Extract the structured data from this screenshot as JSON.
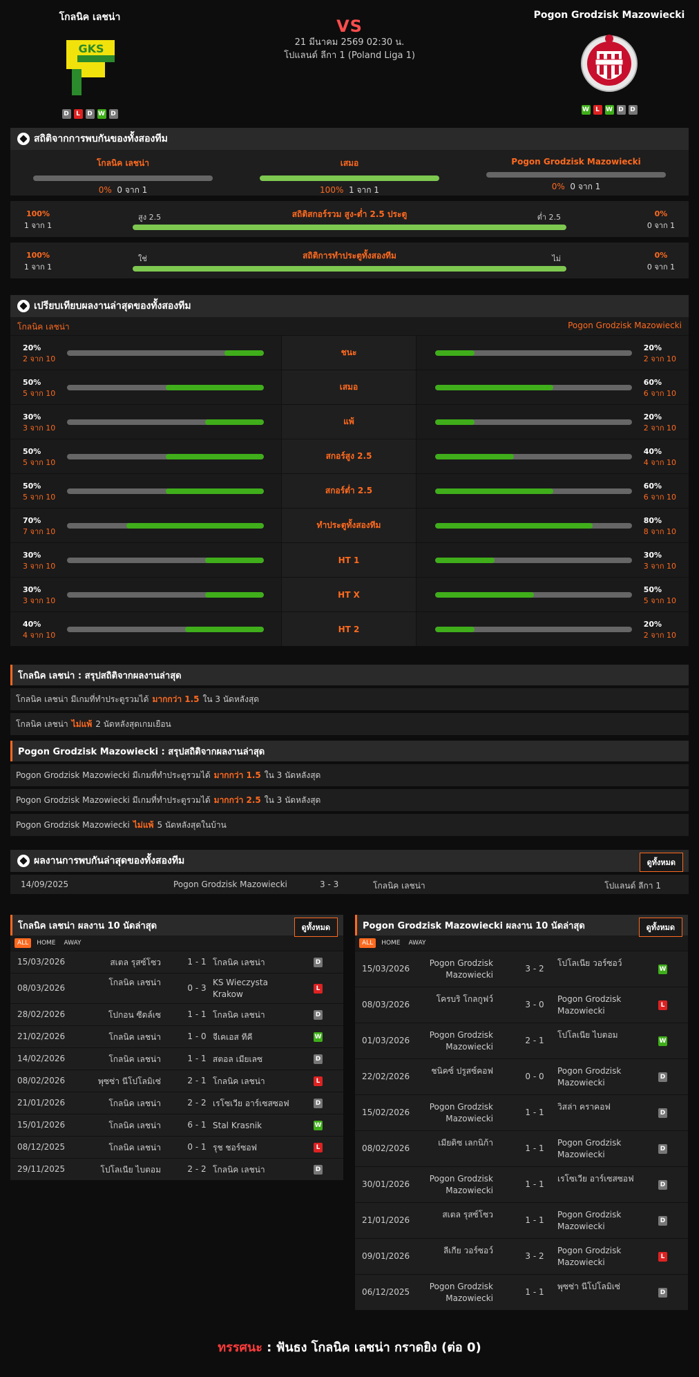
{
  "match": {
    "home": "โกลนิค เลชน่า",
    "away": "Pogon Grodzisk Mazowiecki",
    "vs": "VS",
    "date": "21 มีนาคม 2569 02:30 น.",
    "league": "โปแลนด์ ลีกา 1 (Poland Liga 1)",
    "home_form": [
      "D",
      "L",
      "D",
      "W",
      "D"
    ],
    "away_form": [
      "W",
      "L",
      "W",
      "D",
      "D"
    ]
  },
  "h2h_stats": {
    "title": "สถิติจากการพบกันของทั้งสองทีม",
    "home": {
      "name": "โกลนิค เลชน่า",
      "pct": "0%",
      "sub": "0 จาก 1",
      "value": 0
    },
    "draw": {
      "name": "เสมอ",
      "pct": "100%",
      "sub": "1 จาก 1",
      "value": 100
    },
    "away": {
      "name": "Pogon Grodzisk Mazowiecki",
      "pct": "0%",
      "sub": "0 จาก 1",
      "value": 0
    },
    "ou": {
      "title": "สถิติสกอร์รวม สูง-ต่ำ 2.5 ประตู",
      "left_pct": "100%",
      "left_sub": "1 จาก 1",
      "left_label": "สูง 2.5",
      "right_label": "ต่ำ 2.5",
      "right_pct": "0%",
      "right_sub": "0 จาก 1",
      "value": 100
    },
    "btts": {
      "title": "สถิติการทำประตูทั้งสองทีม",
      "left_pct": "100%",
      "left_sub": "1 จาก 1",
      "left_label": "ใช่",
      "right_label": "ไม่",
      "right_pct": "0%",
      "right_sub": "0 จาก 1",
      "value": 100
    }
  },
  "compare": {
    "title": "เปรียบเทียบผลงานล่าสุดของทั้งสองทีม",
    "home": "โกลนิค เลชน่า",
    "away": "Pogon Grodzisk Mazowiecki",
    "rows": [
      {
        "label": "ชนะ",
        "hp": "20%",
        "hs": "2 จาก 10",
        "hv": 20,
        "ap": "20%",
        "as": "2 จาก 10",
        "av": 20
      },
      {
        "label": "เสมอ",
        "hp": "50%",
        "hs": "5 จาก 10",
        "hv": 50,
        "ap": "60%",
        "as": "6 จาก 10",
        "av": 60
      },
      {
        "label": "แพ้",
        "hp": "30%",
        "hs": "3 จาก 10",
        "hv": 30,
        "ap": "20%",
        "as": "2 จาก 10",
        "av": 20
      },
      {
        "label": "สกอร์สูง 2.5",
        "hp": "50%",
        "hs": "5 จาก 10",
        "hv": 50,
        "ap": "40%",
        "as": "4 จาก 10",
        "av": 40
      },
      {
        "label": "สกอร์ต่ำ 2.5",
        "hp": "50%",
        "hs": "5 จาก 10",
        "hv": 50,
        "ap": "60%",
        "as": "6 จาก 10",
        "av": 60
      },
      {
        "label": "ทำประตูทั้งสองทีม",
        "hp": "70%",
        "hs": "7 จาก 10",
        "hv": 70,
        "ap": "80%",
        "as": "8 จาก 10",
        "av": 80
      },
      {
        "label": "HT 1",
        "hp": "30%",
        "hs": "3 จาก 10",
        "hv": 30,
        "ap": "30%",
        "as": "3 จาก 10",
        "av": 30
      },
      {
        "label": "HT X",
        "hp": "30%",
        "hs": "3 จาก 10",
        "hv": 30,
        "ap": "50%",
        "as": "5 จาก 10",
        "av": 50
      },
      {
        "label": "HT 2",
        "hp": "40%",
        "hs": "4 จาก 10",
        "hv": 40,
        "ap": "20%",
        "as": "2 จาก 10",
        "av": 20
      }
    ]
  },
  "home_summary": {
    "title": "โกลนิค เลชน่า : สรุปสถิติจากผลงานล่าสุด",
    "lines": [
      {
        "pre": "โกลนิค เลชน่า  มีเกมที่ทำประตูรวมได้",
        "hl": "มากกว่า  1.5",
        "post": "ใน 3 นัดหลังสุด"
      },
      {
        "pre": "โกลนิค เลชน่า",
        "hl": "ไม่แพ้",
        "post": "2  นัดหลังสุดเกมเยือน"
      }
    ]
  },
  "away_summary": {
    "title": "Pogon Grodzisk Mazowiecki : สรุปสถิติจากผลงานล่าสุด",
    "lines": [
      {
        "pre": "Pogon Grodzisk Mazowiecki  มีเกมที่ทำประตูรวมได้",
        "hl": "มากกว่า  1.5",
        "post": "ใน 3 นัดหลังสุด"
      },
      {
        "pre": "Pogon Grodzisk Mazowiecki  มีเกมที่ทำประตูรวมได้",
        "hl": "มากกว่า  2.5",
        "post": "ใน 3 นัดหลังสุด"
      },
      {
        "pre": "Pogon Grodzisk Mazowiecki",
        "hl": "ไม่แพ้",
        "post": "5  นัดหลังสุดในบ้าน"
      }
    ]
  },
  "h2h_results": {
    "title": "ผลงานการพบกันล่าสุดของทั้งสองทีม",
    "view_all": "ดูทั้งหมด",
    "rows": [
      {
        "date": "14/09/2025",
        "home": "Pogon Grodzisk Mazowiecki",
        "score": "3 - 3",
        "away": "โกลนิค เลชน่า",
        "league": "โปแลนด์ ลีกา 1"
      }
    ]
  },
  "tabs": [
    "ALL",
    "HOME",
    "AWAY"
  ],
  "home_last10": {
    "title": "โกลนิค เลชน่า ผลงาน 10 นัดล่าสุด",
    "view_all": "ดูทั้งหมด",
    "rows": [
      {
        "date": "15/03/2026",
        "home": "สเตล รุสซ์โซว",
        "score": "1 - 1",
        "away": "โกลนิค เลชน่า",
        "r": "D"
      },
      {
        "date": "08/03/2026",
        "home": "โกลนิค เลชน่า",
        "score": "0 - 3",
        "away": "KS Wieczysta Krakow",
        "r": "L"
      },
      {
        "date": "28/02/2026",
        "home": "โปกอน ซีดล์เซ",
        "score": "1 - 1",
        "away": "โกลนิค เลชน่า",
        "r": "D"
      },
      {
        "date": "21/02/2026",
        "home": "โกลนิค เลชน่า",
        "score": "1 - 0",
        "away": "จีเคเอส ทีคี",
        "r": "W"
      },
      {
        "date": "14/02/2026",
        "home": "โกลนิค เลชน่า",
        "score": "1 - 1",
        "away": "สตอล เมียเลซ",
        "r": "D"
      },
      {
        "date": "08/02/2026",
        "home": "พุซซ่า นีโปโลมิเซ่",
        "score": "2 - 1",
        "away": "โกลนิค เลชน่า",
        "r": "L"
      },
      {
        "date": "21/01/2026",
        "home": "โกลนิค เลชน่า",
        "score": "2 - 2",
        "away": "เรโซเวีย อาร์เซสซอฟ",
        "r": "D"
      },
      {
        "date": "15/01/2026",
        "home": "โกลนิค เลชน่า",
        "score": "6 - 1",
        "away": "Stal Krasnik",
        "r": "W"
      },
      {
        "date": "08/12/2025",
        "home": "โกลนิค เลชน่า",
        "score": "0 - 1",
        "away": "รุช ชอร์ซอฟ",
        "r": "L"
      },
      {
        "date": "29/11/2025",
        "home": "โปโลเนีย ไบตอม",
        "score": "2 - 2",
        "away": "โกลนิค เลชน่า",
        "r": "D"
      }
    ]
  },
  "away_last10": {
    "title": "Pogon Grodzisk Mazowiecki ผลงาน 10 นัดล่าสุด",
    "view_all": "ดูทั้งหมด",
    "rows": [
      {
        "date": "15/03/2026",
        "home": "Pogon Grodzisk Mazowiecki",
        "score": "3 - 2",
        "away": "โปโลเนีย วอร์ซอว์",
        "r": "W"
      },
      {
        "date": "08/03/2026",
        "home": "โครบริ โกลกูฟว์",
        "score": "3 - 0",
        "away": "Pogon Grodzisk Mazowiecki",
        "r": "L"
      },
      {
        "date": "01/03/2026",
        "home": "Pogon Grodzisk Mazowiecki",
        "score": "2 - 1",
        "away": "โปโลเนีย ไบตอม",
        "r": "W"
      },
      {
        "date": "22/02/2026",
        "home": "ชนิคซ์ ปรูสซ์คอฟ",
        "score": "0 - 0",
        "away": "Pogon Grodzisk Mazowiecki",
        "r": "D"
      },
      {
        "date": "15/02/2026",
        "home": "Pogon Grodzisk Mazowiecki",
        "score": "1 - 1",
        "away": "วิสล่า คราคอฟ",
        "r": "D"
      },
      {
        "date": "08/02/2026",
        "home": "เมียดิซ เลกนิก้า",
        "score": "1 - 1",
        "away": "Pogon Grodzisk Mazowiecki",
        "r": "D"
      },
      {
        "date": "30/01/2026",
        "home": "Pogon Grodzisk Mazowiecki",
        "score": "1 - 1",
        "away": "เรโซเวีย อาร์เซสซอฟ",
        "r": "D"
      },
      {
        "date": "21/01/2026",
        "home": "สเตล รุสซ์โซว",
        "score": "1 - 1",
        "away": "Pogon Grodzisk Mazowiecki",
        "r": "D"
      },
      {
        "date": "09/01/2026",
        "home": "ลีเกีย วอร์ซอว์",
        "score": "3 - 2",
        "away": "Pogon Grodzisk Mazowiecki",
        "r": "L"
      },
      {
        "date": "06/12/2025",
        "home": "Pogon Grodzisk Mazowiecki",
        "score": "1 - 1",
        "away": "พุซซ่า นีโปโลมิเซ่",
        "r": "D"
      }
    ]
  },
  "verdict": {
    "label": "ทรรศนะ",
    "sep": " : ",
    "text": "ฟันธง โกลนิค เลชน่า กราดยิง (ต่อ 0)"
  },
  "colors": {
    "accent": "#ff6a1f",
    "win": "#3fae1a",
    "loss": "#dd2222",
    "draw": "#777777"
  }
}
